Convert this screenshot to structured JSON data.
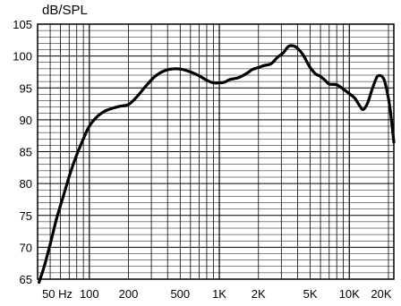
{
  "chart_data": {
    "type": "line",
    "title": "",
    "ylabel": "dB/SPL",
    "xlabel": "",
    "x_scale": "log",
    "xlim": [
      40,
      22000
    ],
    "ylim": [
      65,
      105
    ],
    "grid": true,
    "x_tick_labels": [
      {
        "label": "50 Hz",
        "value": 50
      },
      {
        "label": "100",
        "value": 100
      },
      {
        "label": "200",
        "value": 200
      },
      {
        "label": "500",
        "value": 500
      },
      {
        "label": "1K",
        "value": 1000
      },
      {
        "label": "2K",
        "value": 2000
      },
      {
        "label": "5K",
        "value": 5000
      },
      {
        "label": "10K",
        "value": 10000
      },
      {
        "label": "20K",
        "value": 20000
      }
    ],
    "y_ticks": [
      105,
      100,
      95,
      90,
      85,
      80,
      75,
      70,
      65
    ],
    "series": [
      {
        "name": "",
        "color": "#000000",
        "points": [
          {
            "x": 41,
            "y": 64.5
          },
          {
            "x": 45,
            "y": 67
          },
          {
            "x": 50,
            "y": 70.5
          },
          {
            "x": 56,
            "y": 74.5
          },
          {
            "x": 63,
            "y": 78
          },
          {
            "x": 71,
            "y": 81.5
          },
          {
            "x": 80,
            "y": 84.5
          },
          {
            "x": 90,
            "y": 87
          },
          {
            "x": 100,
            "y": 89
          },
          {
            "x": 115,
            "y": 90.5
          },
          {
            "x": 130,
            "y": 91.3
          },
          {
            "x": 150,
            "y": 91.8
          },
          {
            "x": 170,
            "y": 92.1
          },
          {
            "x": 200,
            "y": 92.4
          },
          {
            "x": 230,
            "y": 93.5
          },
          {
            "x": 270,
            "y": 95.2
          },
          {
            "x": 320,
            "y": 96.8
          },
          {
            "x": 380,
            "y": 97.7
          },
          {
            "x": 450,
            "y": 98
          },
          {
            "x": 520,
            "y": 97.9
          },
          {
            "x": 600,
            "y": 97.5
          },
          {
            "x": 700,
            "y": 96.9
          },
          {
            "x": 800,
            "y": 96.2
          },
          {
            "x": 900,
            "y": 95.8
          },
          {
            "x": 1000,
            "y": 95.8
          },
          {
            "x": 1100,
            "y": 95.9
          },
          {
            "x": 1200,
            "y": 96.3
          },
          {
            "x": 1400,
            "y": 96.6
          },
          {
            "x": 1600,
            "y": 97.2
          },
          {
            "x": 1800,
            "y": 97.9
          },
          {
            "x": 2000,
            "y": 98.2
          },
          {
            "x": 2200,
            "y": 98.5
          },
          {
            "x": 2500,
            "y": 98.8
          },
          {
            "x": 2800,
            "y": 99.8
          },
          {
            "x": 3100,
            "y": 100.5
          },
          {
            "x": 3400,
            "y": 101.5
          },
          {
            "x": 3700,
            "y": 101.6
          },
          {
            "x": 4000,
            "y": 101.2
          },
          {
            "x": 4400,
            "y": 100.2
          },
          {
            "x": 5000,
            "y": 98.2
          },
          {
            "x": 5500,
            "y": 97.2
          },
          {
            "x": 6000,
            "y": 96.8
          },
          {
            "x": 6500,
            "y": 96.2
          },
          {
            "x": 7000,
            "y": 95.6
          },
          {
            "x": 8000,
            "y": 95.5
          },
          {
            "x": 9000,
            "y": 94.8
          },
          {
            "x": 10000,
            "y": 94.1
          },
          {
            "x": 11000,
            "y": 93.4
          },
          {
            "x": 12000,
            "y": 92.2
          },
          {
            "x": 12800,
            "y": 91.6
          },
          {
            "x": 13800,
            "y": 92.6
          },
          {
            "x": 15000,
            "y": 94.8
          },
          {
            "x": 16300,
            "y": 96.7
          },
          {
            "x": 17500,
            "y": 96.9
          },
          {
            "x": 18500,
            "y": 96.3
          },
          {
            "x": 19500,
            "y": 94.5
          },
          {
            "x": 20500,
            "y": 92
          },
          {
            "x": 21200,
            "y": 89.5
          },
          {
            "x": 22000,
            "y": 86.5
          }
        ]
      }
    ]
  }
}
